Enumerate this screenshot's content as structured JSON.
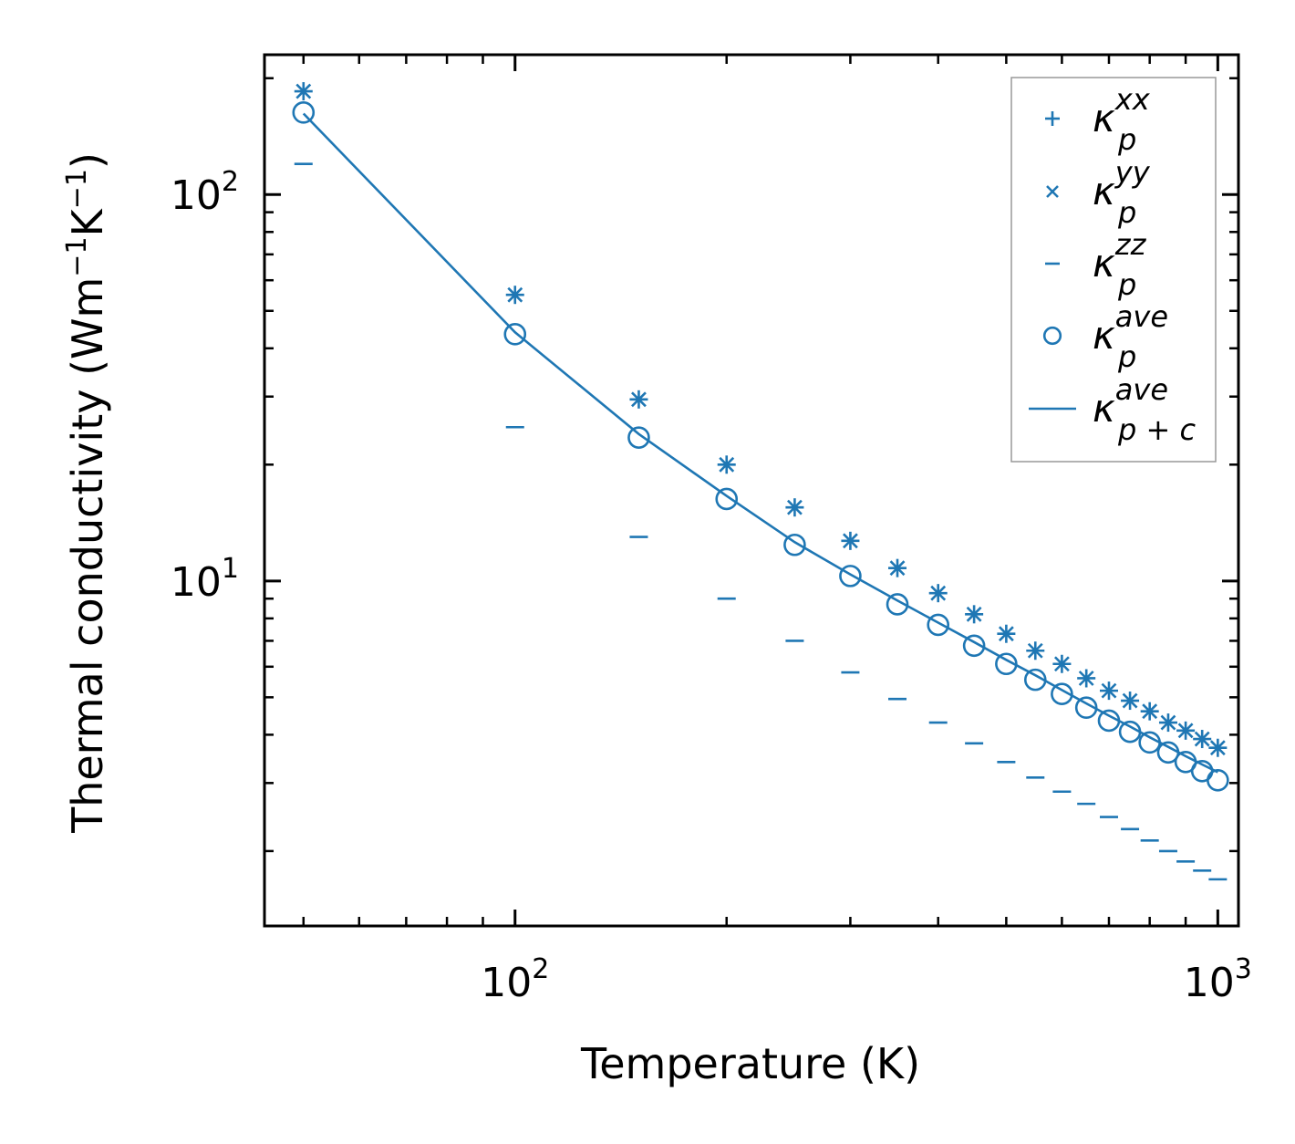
{
  "chart_data": {
    "type": "scatter",
    "xscale": "log",
    "yscale": "log",
    "xlim": [
      44,
      1070
    ],
    "ylim": [
      1.28,
      230
    ],
    "xlabel": "Temperature (K)",
    "ylabel": "Thermal conductivity (Wm",
    "ylabel_units": {
      "exp1": "−1",
      "mid": "K",
      "exp2": "−1",
      "close": ")"
    },
    "x_ticks": [
      {
        "base": "10",
        "exp": "2",
        "value": 100
      },
      {
        "base": "10",
        "exp": "3",
        "value": 1000
      }
    ],
    "y_ticks": [
      {
        "base": "10",
        "exp": "2",
        "value": 100
      },
      {
        "base": "10",
        "exp": "1",
        "value": 10
      }
    ],
    "x": [
      50,
      100,
      150,
      200,
      250,
      300,
      350,
      400,
      450,
      500,
      550,
      600,
      650,
      700,
      750,
      800,
      850,
      900,
      950,
      1000
    ],
    "series": [
      {
        "name": "kappa_p_xx",
        "marker": "+",
        "values": [
          185,
          55,
          29.5,
          20.0,
          15.5,
          12.7,
          10.8,
          9.3,
          8.2,
          7.3,
          6.6,
          6.1,
          5.6,
          5.2,
          4.9,
          4.6,
          4.3,
          4.1,
          3.9,
          3.7
        ]
      },
      {
        "name": "kappa_p_yy",
        "marker": "x",
        "values": [
          185,
          55,
          29.5,
          20.0,
          15.5,
          12.7,
          10.8,
          9.3,
          8.2,
          7.3,
          6.6,
          6.1,
          5.6,
          5.2,
          4.9,
          4.6,
          4.3,
          4.1,
          3.9,
          3.7
        ]
      },
      {
        "name": "kappa_p_zz",
        "marker": "_",
        "values": [
          120,
          25,
          13,
          9.0,
          7.0,
          5.8,
          4.95,
          4.3,
          3.8,
          3.4,
          3.1,
          2.85,
          2.65,
          2.45,
          2.28,
          2.13,
          2.0,
          1.88,
          1.78,
          1.69
        ]
      },
      {
        "name": "kappa_p_ave",
        "marker": "o",
        "values": [
          163,
          43.5,
          23.5,
          16.3,
          12.4,
          10.3,
          8.7,
          7.7,
          6.8,
          6.1,
          5.55,
          5.1,
          4.7,
          4.35,
          4.07,
          3.82,
          3.6,
          3.4,
          3.22,
          3.05
        ]
      },
      {
        "name": "kappa_pc_ave",
        "marker": "line",
        "values": [
          162,
          44.0,
          24.0,
          16.6,
          12.6,
          10.4,
          8.9,
          7.8,
          6.95,
          6.25,
          5.7,
          5.22,
          4.82,
          4.48,
          4.2,
          3.94,
          3.72,
          3.52,
          3.35,
          3.2
        ]
      }
    ],
    "legend": {
      "location": "top-right",
      "entries": [
        {
          "symbol": "κ",
          "sub": "p",
          "sup": "xx"
        },
        {
          "symbol": "κ",
          "sub": "p",
          "sup": "yy"
        },
        {
          "symbol": "κ",
          "sub": "p",
          "sup": "zz"
        },
        {
          "symbol": "κ",
          "sub": "p",
          "sup": "ave"
        },
        {
          "symbol": "κ",
          "sub": "p + c",
          "sup": "ave"
        }
      ]
    },
    "colors": {
      "series": "#1f77b4",
      "axes": "#000000",
      "legend_border": "#999999"
    }
  }
}
